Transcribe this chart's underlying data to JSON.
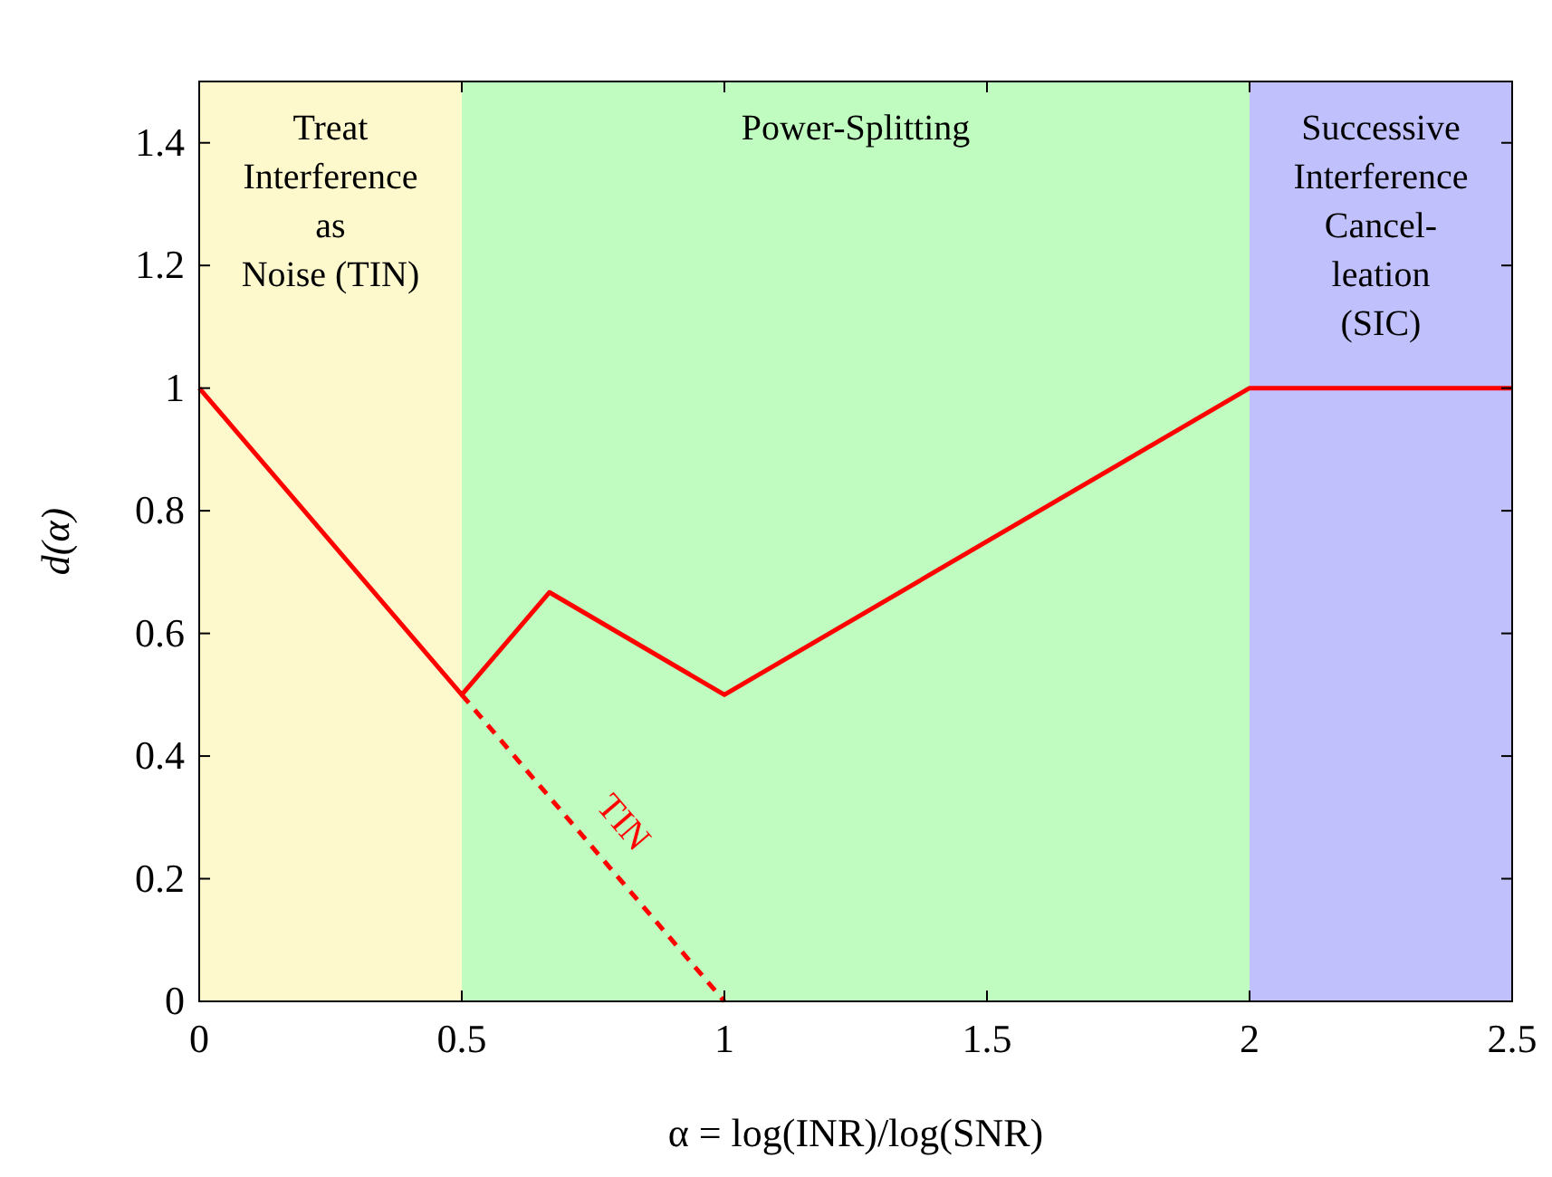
{
  "chart_data": {
    "type": "line",
    "xlabel": "α = log(INR)/log(SNR)",
    "ylabel": "d(α)",
    "xlim": [
      0,
      2.5
    ],
    "xticks": [
      0,
      0.5,
      1,
      1.5,
      2,
      2.5
    ],
    "ylim": [
      0,
      1.5
    ],
    "yticks": [
      0,
      0.2,
      0.4,
      0.6,
      0.8,
      1,
      1.2,
      1.4
    ],
    "series": [
      {
        "color": "#ff0000",
        "x": [
          0,
          0.5,
          0.667,
          1,
          2,
          2.5
        ],
        "values": [
          1,
          0.5,
          0.667,
          0.5,
          1,
          1
        ],
        "line_style": "solid"
      },
      {
        "color": "#ff0000",
        "x": [
          0.5,
          1
        ],
        "values": [
          0.5,
          0
        ],
        "line_style": "dashed"
      }
    ],
    "bands": [
      {
        "axis": "x",
        "from": 0,
        "to": 0.5,
        "label": "Treat\nInterference\nas\nNoise (TIN)",
        "color": "#fdf9cc"
      },
      {
        "axis": "x",
        "from": 0.5,
        "to": 2,
        "label": "Power-Splitting",
        "color": "#c0fcc0"
      },
      {
        "axis": "x",
        "from": 2,
        "to": 2.5,
        "label": "Successive\nInterference\nCancel-\nleation\n(SIC)",
        "color": "#c0c0fc"
      }
    ],
    "annotations": [
      "TIN"
    ],
    "grid": false
  }
}
